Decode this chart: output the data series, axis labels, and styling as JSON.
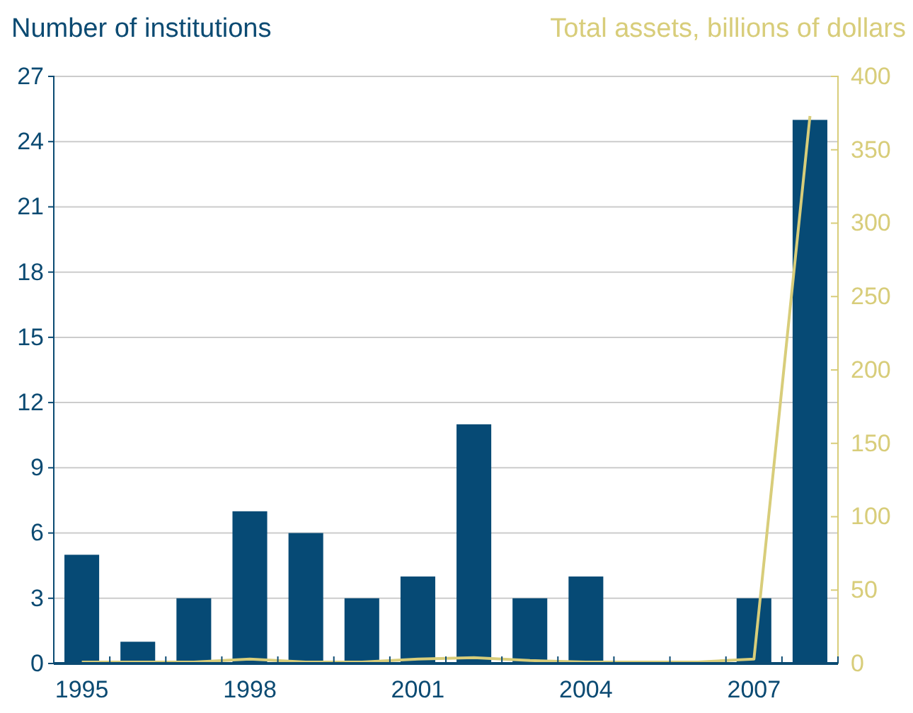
{
  "chart_data": {
    "type": "bar",
    "ylabel": "Number of institutions",
    "y2label": "Total assets, billions of dollars",
    "categories": [
      "1995",
      null,
      null,
      "1998",
      null,
      null,
      "2001",
      null,
      null,
      "2004",
      null,
      null,
      "2007",
      null
    ],
    "series": [
      {
        "color": "#064a75",
        "values": [
          5,
          1,
          3,
          7,
          6,
          3,
          4,
          11,
          3,
          4,
          0,
          0,
          3,
          25
        ]
      },
      {
        "type": "line",
        "axis": "y2",
        "color": "#d8cd7a",
        "values": [
          1,
          1,
          1,
          3,
          1,
          1,
          3,
          4,
          2,
          1,
          1,
          1,
          3,
          373
        ]
      }
    ],
    "ylim": [
      0,
      27
    ],
    "yticks": [
      0,
      3,
      6,
      9,
      12,
      15,
      18,
      21,
      24,
      27
    ],
    "y2lim": [
      0,
      400
    ],
    "y2ticks": [
      0,
      50,
      100,
      150,
      200,
      250,
      300,
      350,
      400
    ],
    "grid": "y"
  }
}
